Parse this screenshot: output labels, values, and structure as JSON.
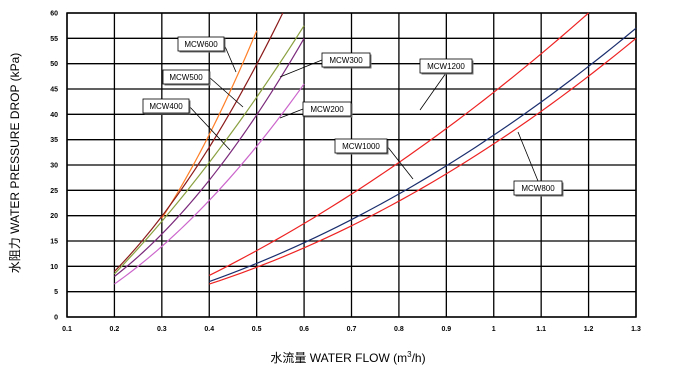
{
  "chart_data": {
    "type": "line",
    "title": "",
    "xlabel_cn": "水流量",
    "xlabel": "WATER FLOW (m",
    "xlabel_sup": "3",
    "xlabel_tail": "/h)",
    "ylabel_cn": "水阻力",
    "ylabel": "WATER PRESSURE DROP (kPa)",
    "xlim": [
      0.1,
      1.3
    ],
    "ylim": [
      0,
      60
    ],
    "x_ticks": [
      "0.1",
      "0.2",
      "0.3",
      "0.4",
      "0.5",
      "0.6",
      "0.7",
      "0.8",
      "0.9",
      "1",
      "1.1",
      "1.2",
      "1.3"
    ],
    "y_ticks": [
      "0",
      "5",
      "10",
      "15",
      "20",
      "25",
      "30",
      "35",
      "40",
      "45",
      "50",
      "55",
      "60"
    ],
    "grid": true,
    "series": [
      {
        "name": "MCW600",
        "color": "#ff7f27",
        "x": [
          0.3,
          0.4,
          0.5
        ],
        "y": [
          19.5,
          36,
          56.5
        ]
      },
      {
        "name": "MCW500",
        "color": "#8b1a1a",
        "x": [
          0.2,
          0.4,
          0.555
        ],
        "y": [
          9,
          33.5,
          60
        ]
      },
      {
        "name": "MCW300",
        "color": "#8aa040",
        "x": [
          0.2,
          0.4,
          0.6
        ],
        "y": [
          8.5,
          30.5,
          57.5
        ]
      },
      {
        "name": "MCW400",
        "color": "#7b2a7b",
        "x": [
          0.2,
          0.4,
          0.6
        ],
        "y": [
          8,
          27,
          55
        ]
      },
      {
        "name": "MCW200",
        "color": "#cc66cc",
        "x": [
          0.2,
          0.4,
          0.6
        ],
        "y": [
          6.5,
          23,
          46
        ]
      },
      {
        "name": "MCW1200",
        "color": "#ee2222",
        "x": [
          0.4,
          0.8,
          1.2
        ],
        "y": [
          8.2,
          30.5,
          60
        ]
      },
      {
        "name": "MCW1000",
        "color": "#1a2e6e",
        "x": [
          0.4,
          0.85,
          1.3
        ],
        "y": [
          7,
          27,
          57
        ]
      },
      {
        "name": "MCW800",
        "color": "#ee2222",
        "x": [
          0.4,
          0.85,
          1.3
        ],
        "y": [
          6.5,
          25.5,
          55
        ]
      }
    ],
    "callouts": [
      {
        "label": "MCW600"
      },
      {
        "label": "MCW500"
      },
      {
        "label": "MCW300"
      },
      {
        "label": "MCW400"
      },
      {
        "label": "MCW200"
      },
      {
        "label": "MCW1200"
      },
      {
        "label": "MCW1000"
      },
      {
        "label": "MCW800"
      }
    ]
  }
}
